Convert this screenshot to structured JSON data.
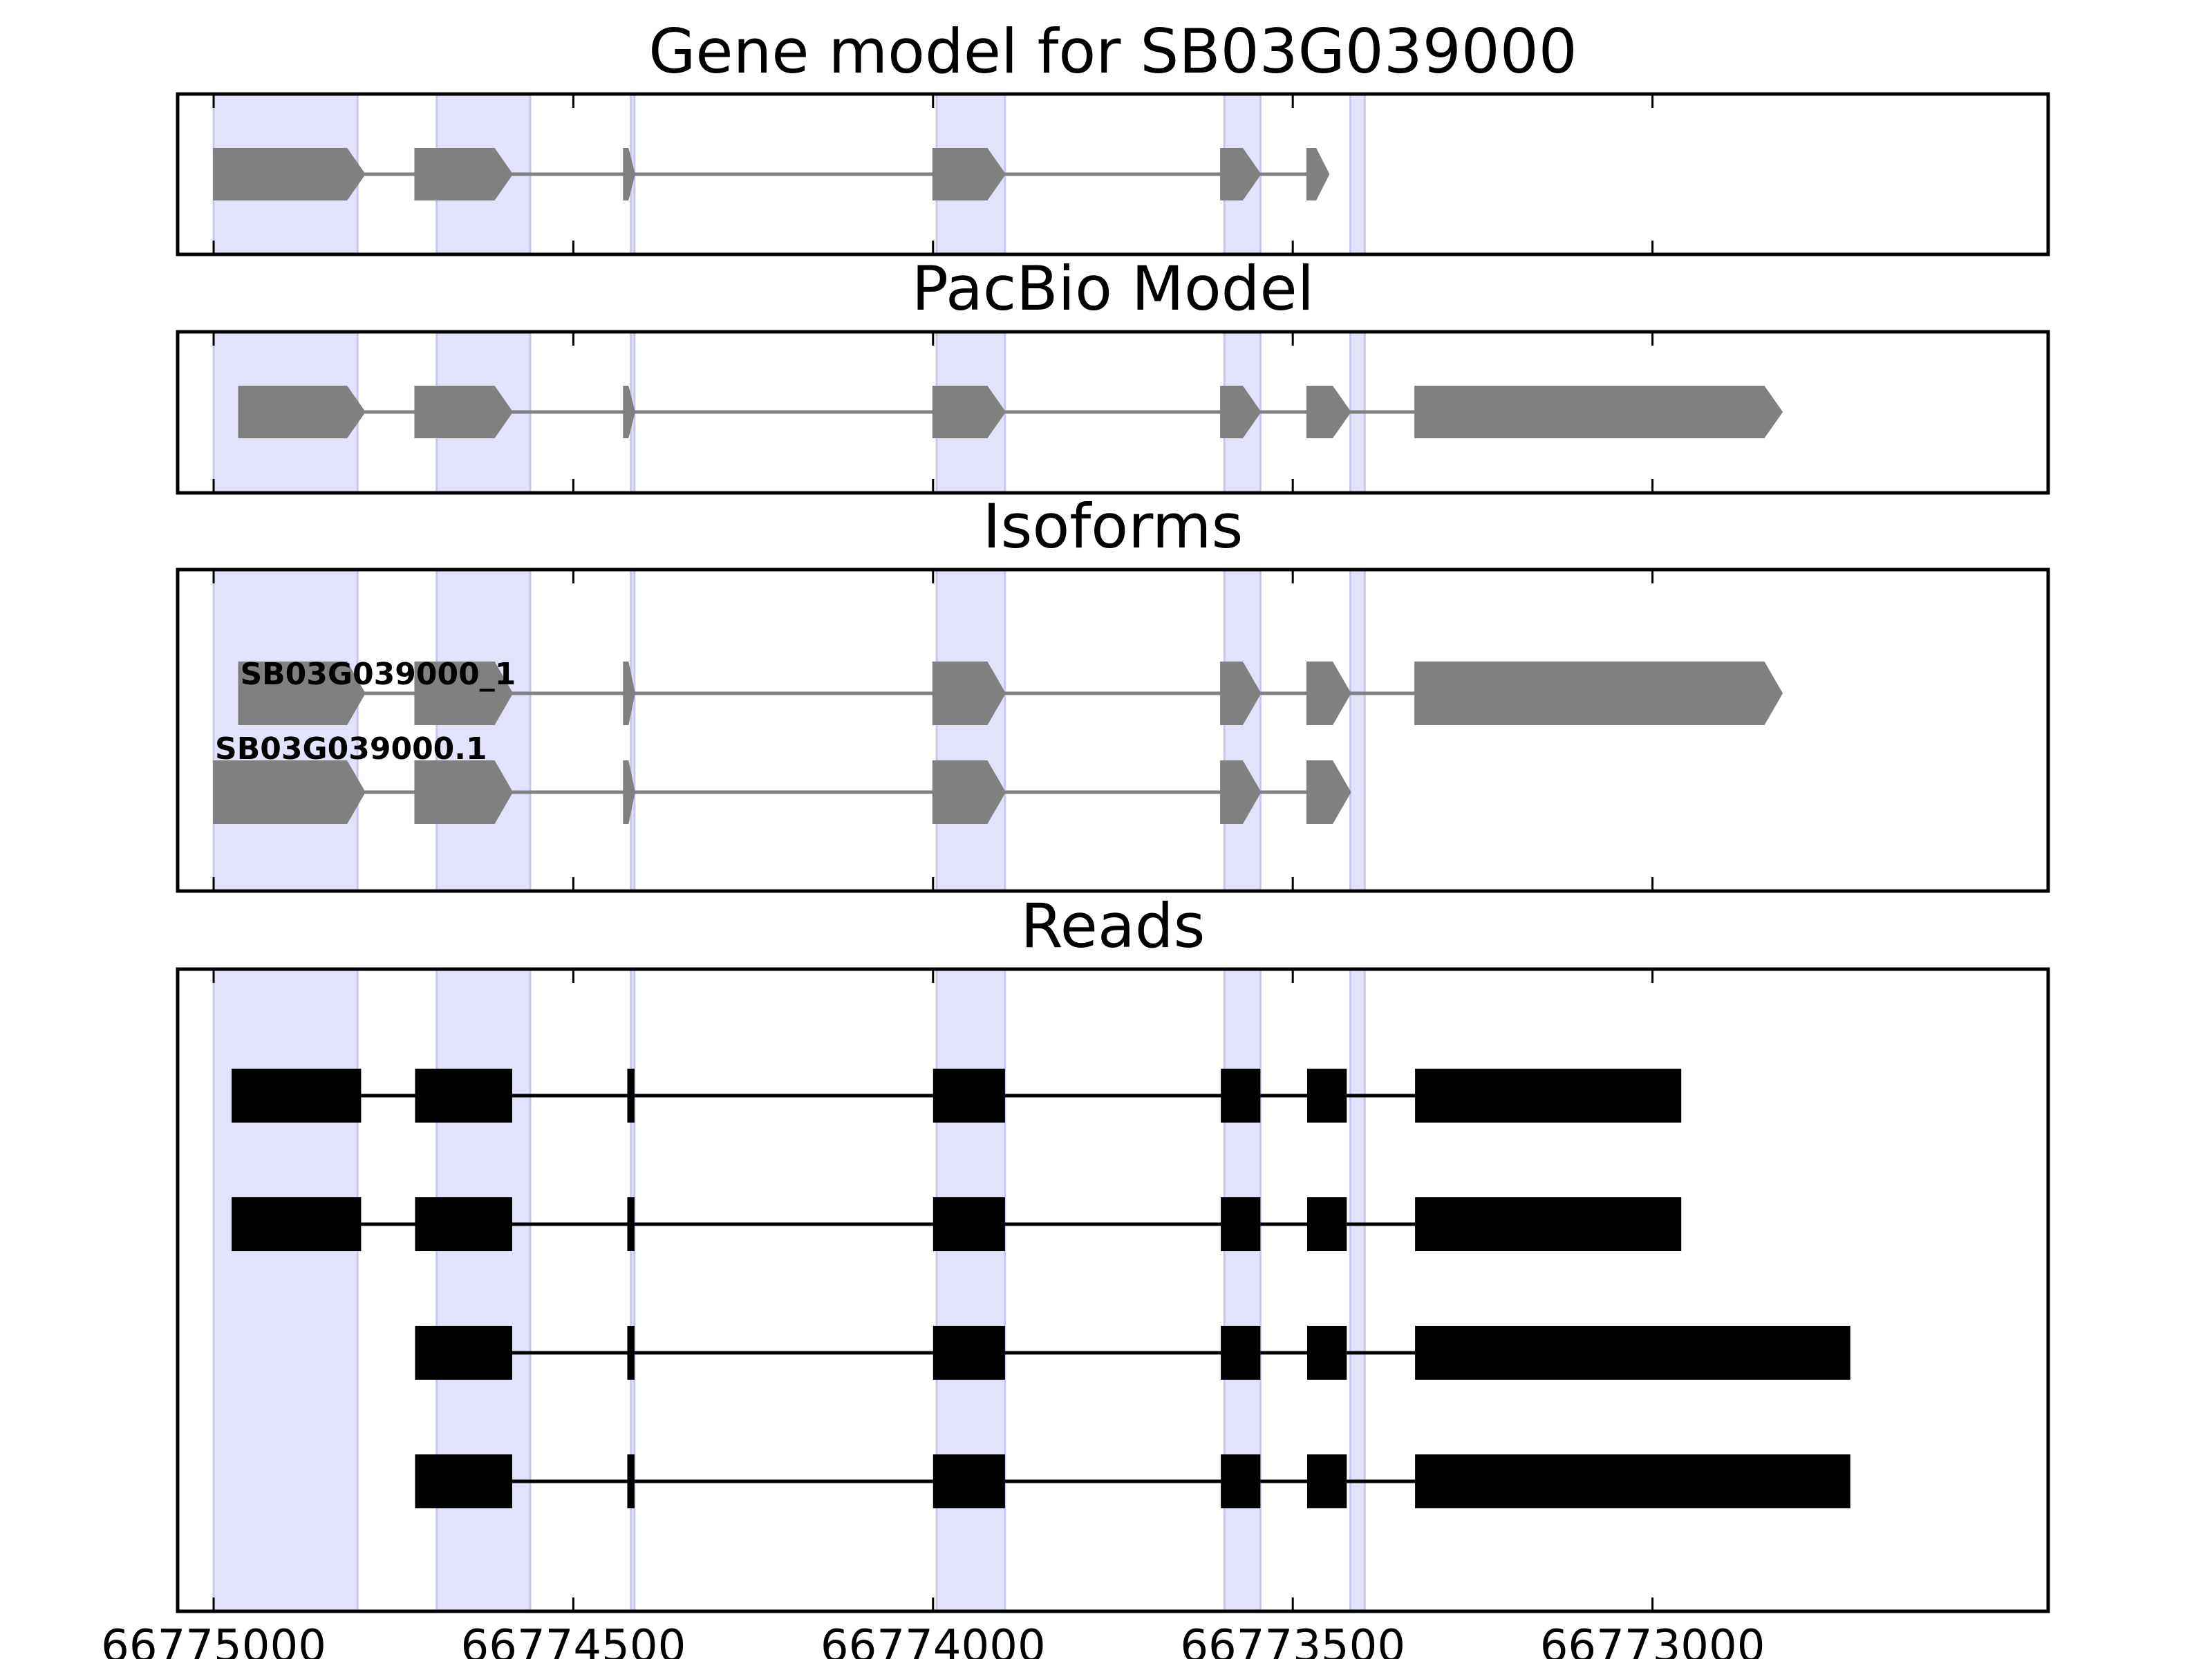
{
  "chart_data": {
    "type": "gene-structure",
    "x_axis": {
      "range": [
        66775050,
        66772450
      ],
      "reversed": true,
      "ticks": [
        66775000,
        66774500,
        66774000,
        66773500,
        66773000
      ],
      "tick_labels": [
        "66775000",
        "66774500",
        "66774000",
        "66773500",
        "66773000"
      ]
    },
    "highlight_regions": [
      [
        66775000,
        66774800
      ],
      [
        66774690,
        66774560
      ],
      [
        66774420,
        66774415
      ],
      [
        66773995,
        66773900
      ],
      [
        66773595,
        66773545
      ],
      [
        66773420,
        66773400
      ]
    ],
    "colors": {
      "highlight": "#e2e2fb",
      "highlight_edge": "#c8c8ee",
      "gene_shape": "#808080",
      "read": "#000000",
      "frame": "#000000"
    },
    "panels": [
      {
        "title": "Gene model for SB03G039000",
        "tracks": [
          {
            "label": "",
            "exons": [
              [
                66775000,
                66774790
              ],
              [
                66774720,
                66774585
              ],
              [
                66774430,
                66774415
              ],
              [
                66774000,
                66773900
              ],
              [
                66773600,
                66773545
              ],
              [
                66773480,
                66773450
              ]
            ]
          }
        ]
      },
      {
        "title": "PacBio Model",
        "tracks": [
          {
            "label": "",
            "exons": [
              [
                66774965,
                66774790
              ],
              [
                66774720,
                66774585
              ],
              [
                66774430,
                66774415
              ],
              [
                66774000,
                66773900
              ],
              [
                66773600,
                66773545
              ],
              [
                66773480,
                66773420
              ],
              [
                66773330,
                66772820
              ]
            ]
          }
        ]
      },
      {
        "title": "Isoforms",
        "tracks": [
          {
            "label": "SB03G039000_1",
            "exons": [
              [
                66774965,
                66774790
              ],
              [
                66774720,
                66774585
              ],
              [
                66774430,
                66774415
              ],
              [
                66774000,
                66773900
              ],
              [
                66773600,
                66773545
              ],
              [
                66773480,
                66773420
              ],
              [
                66773330,
                66772820
              ]
            ]
          },
          {
            "label": "SB03G039000.1",
            "exons": [
              [
                66775000,
                66774790
              ],
              [
                66774720,
                66774585
              ],
              [
                66774430,
                66774415
              ],
              [
                66774000,
                66773900
              ],
              [
                66773600,
                66773545
              ],
              [
                66773480,
                66773420
              ]
            ]
          }
        ]
      },
      {
        "title": "Reads",
        "tracks": [
          {
            "label": "",
            "exons": [
              [
                66774975,
                66774795
              ],
              [
                66774720,
                66774585
              ],
              [
                66774425,
                66774415
              ],
              [
                66774000,
                66773900
              ],
              [
                66773600,
                66773545
              ],
              [
                66773480,
                66773425
              ],
              [
                66773330,
                66772960
              ]
            ]
          },
          {
            "label": "",
            "exons": [
              [
                66774975,
                66774795
              ],
              [
                66774720,
                66774585
              ],
              [
                66774425,
                66774415
              ],
              [
                66774000,
                66773900
              ],
              [
                66773600,
                66773545
              ],
              [
                66773480,
                66773425
              ],
              [
                66773330,
                66772960
              ]
            ]
          },
          {
            "label": "",
            "exons": [
              [
                66774720,
                66774585
              ],
              [
                66774425,
                66774415
              ],
              [
                66774000,
                66773900
              ],
              [
                66773600,
                66773545
              ],
              [
                66773480,
                66773425
              ],
              [
                66773330,
                66772725
              ]
            ]
          },
          {
            "label": "",
            "exons": [
              [
                66774720,
                66774585
              ],
              [
                66774425,
                66774415
              ],
              [
                66774000,
                66773900
              ],
              [
                66773600,
                66773545
              ],
              [
                66773480,
                66773425
              ],
              [
                66773330,
                66772725
              ]
            ]
          }
        ]
      }
    ]
  }
}
